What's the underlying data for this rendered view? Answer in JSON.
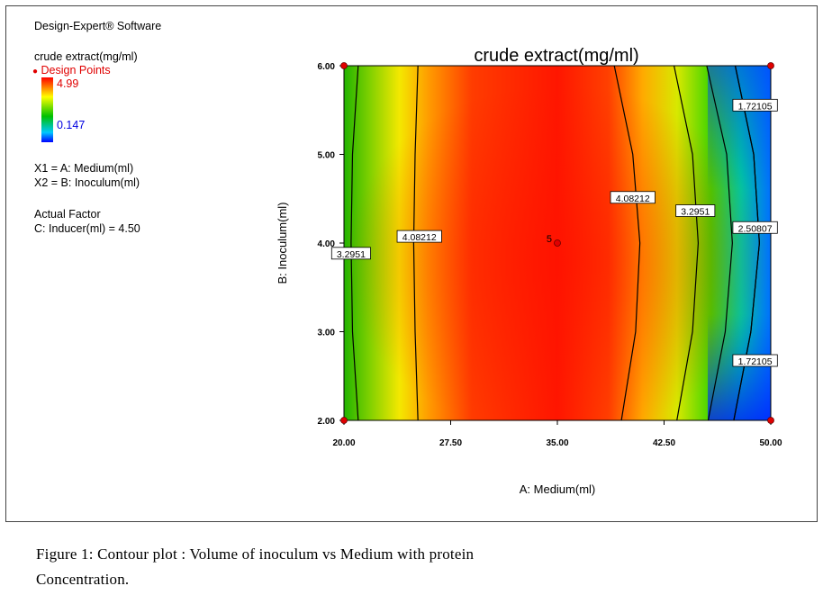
{
  "sidebar": {
    "software": "Design-Expert® Software",
    "response": "crude extract(mg/ml)",
    "design_points_label": "Design Points",
    "scale_max": "4.99",
    "scale_min": "0.147",
    "x1": "X1 = A: Medium(ml)",
    "x2": "X2 = B: Inoculum(ml)",
    "actual_factor_title": "Actual Factor",
    "actual_factor": "C: Inducer(ml) = 4.50"
  },
  "caption": {
    "line1": "Figure 1: Contour plot : Volume of inoculum  vs   Medium  with  protein",
    "line2": "Concentration."
  },
  "colors": {
    "design_point": "#e00000",
    "high": "#e00000",
    "mid": "#00c000",
    "low": "#0000ff"
  },
  "chart_data": {
    "type": "contour",
    "title": "crude extract(mg/ml)",
    "xlabel": "A: Medium(ml)",
    "ylabel": "B: Inoculum(ml)",
    "xlim": [
      20,
      50
    ],
    "ylim": [
      2,
      6
    ],
    "x_ticks": [
      20,
      27.5,
      35,
      42.5,
      50
    ],
    "x_tick_labels": [
      "20.00",
      "27.50",
      "35.00",
      "42.50",
      "50.00"
    ],
    "y_ticks": [
      2,
      3,
      4,
      5,
      6
    ],
    "y_tick_labels": [
      "2.00",
      "3.00",
      "4.00",
      "5.00",
      "6.00"
    ],
    "color_range": [
      0.147,
      4.99
    ],
    "contour_levels": [
      {
        "label": "3.2951",
        "points": [
          [
            21.0,
            2
          ],
          [
            20.6,
            3
          ],
          [
            20.5,
            4
          ],
          [
            20.6,
            5
          ],
          [
            21.0,
            6
          ]
        ],
        "label_at": [
          20.5,
          3.88
        ]
      },
      {
        "label": "4.08212",
        "points": [
          [
            25.2,
            2
          ],
          [
            25.0,
            3
          ],
          [
            24.9,
            4
          ],
          [
            25.0,
            5
          ],
          [
            25.2,
            6
          ]
        ],
        "label_at": [
          25.3,
          4.07
        ]
      },
      {
        "label": "4.08212",
        "points": [
          [
            39.5,
            2
          ],
          [
            40.5,
            3
          ],
          [
            40.8,
            4
          ],
          [
            40.3,
            5
          ],
          [
            39.0,
            6
          ]
        ],
        "label_at": [
          40.3,
          4.51
        ]
      },
      {
        "label": "3.2951",
        "points": [
          [
            43.4,
            2
          ],
          [
            44.5,
            3
          ],
          [
            44.9,
            4
          ],
          [
            44.5,
            5
          ],
          [
            43.2,
            6
          ]
        ],
        "label_at": [
          44.7,
          4.36
        ]
      },
      {
        "label": "2.50807",
        "points": [
          [
            45.6,
            2
          ],
          [
            46.8,
            3
          ],
          [
            47.3,
            4
          ],
          [
            46.9,
            5
          ],
          [
            45.5,
            6
          ]
        ],
        "label_at": [
          48.9,
          4.17
        ]
      },
      {
        "label": "1.72105",
        "points": [
          [
            47.4,
            2
          ],
          [
            48.6,
            3
          ],
          [
            49.2,
            4
          ],
          [
            48.8,
            5
          ],
          [
            47.5,
            6
          ]
        ],
        "label_at": [
          48.9,
          2.67
        ]
      },
      {
        "label": "1.72105",
        "points": [
          [
            47.4,
            2
          ],
          [
            48.6,
            3
          ],
          [
            49.2,
            4
          ],
          [
            48.8,
            5
          ],
          [
            47.5,
            6
          ]
        ],
        "label_at": [
          48.9,
          5.55
        ]
      }
    ],
    "design_points": [
      {
        "x": 20,
        "y": 2
      },
      {
        "x": 20,
        "y": 6
      },
      {
        "x": 50,
        "y": 2
      },
      {
        "x": 50,
        "y": 6
      },
      {
        "x": 35,
        "y": 4,
        "count": "5"
      }
    ]
  }
}
